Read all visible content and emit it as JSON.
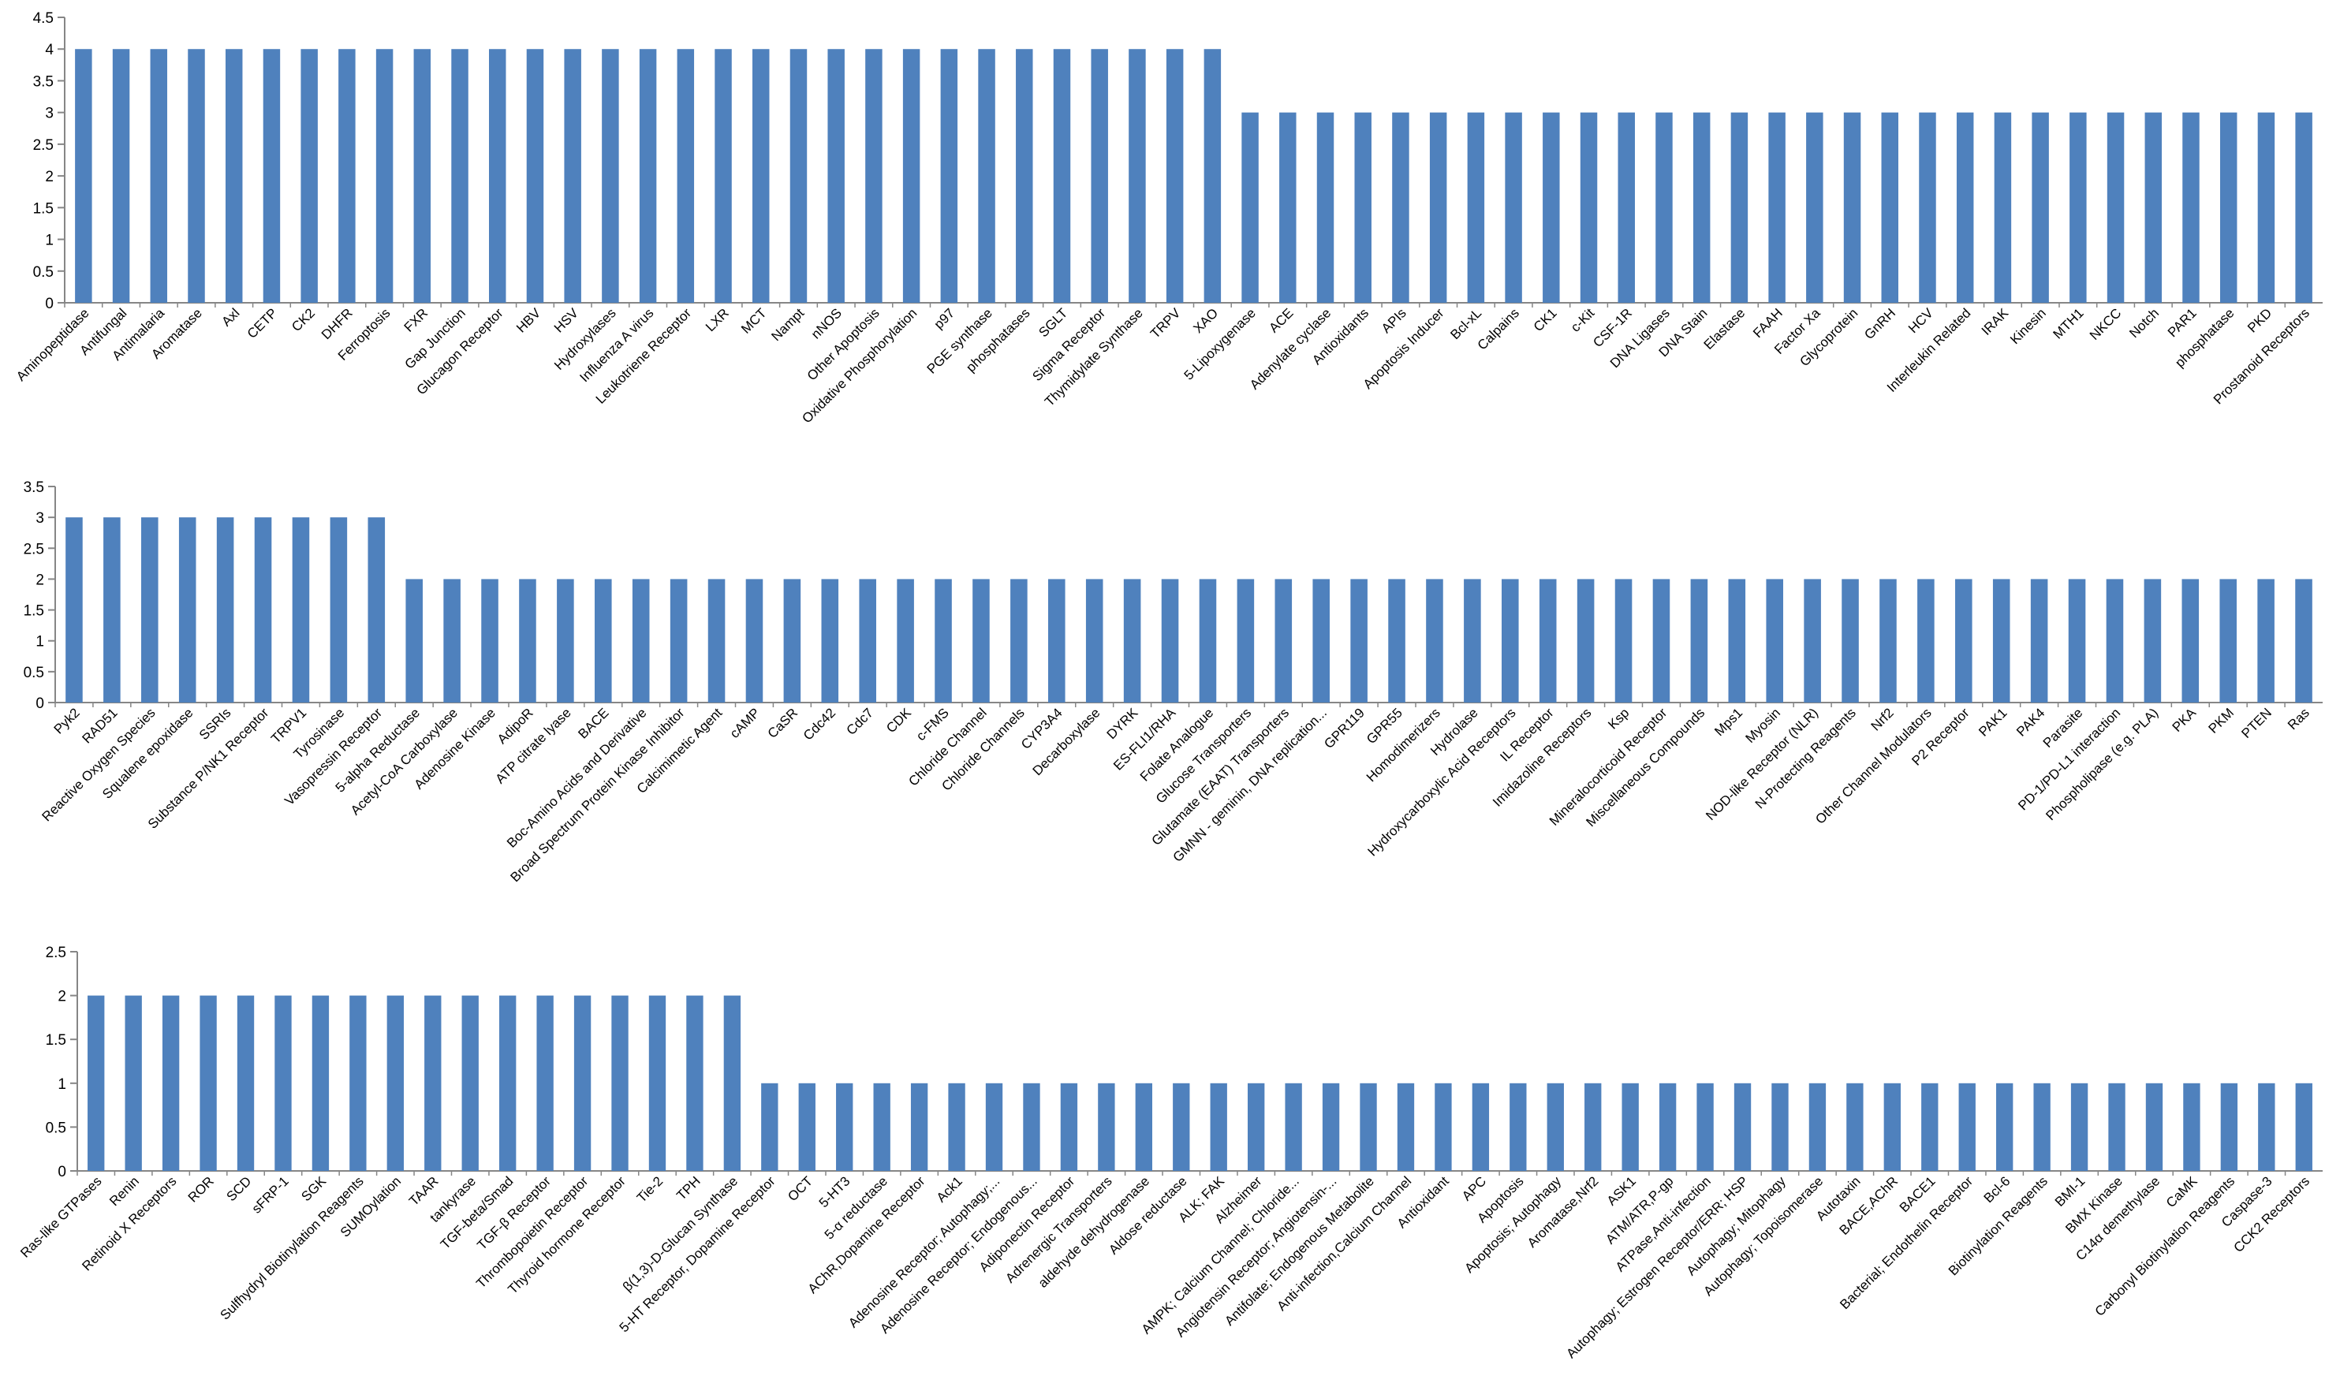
{
  "style": {
    "bar_color": "#4F81BD",
    "axis_color": "#868686",
    "text_color": "#000000"
  },
  "chart_data": [
    {
      "type": "bar",
      "title": "",
      "xlabel": "",
      "ylabel": "",
      "ylim": [
        0,
        4.5
      ],
      "yticks": [
        "0",
        "0.5",
        "1",
        "1.5",
        "2",
        "2.5",
        "3",
        "3.5",
        "4",
        "4.5"
      ],
      "grid": false,
      "legend": "none",
      "categories": [
        "Aminopeptidase",
        "Antifungal",
        "Antimalaria",
        "Aromatase",
        "Axl",
        "CETP",
        "CK2",
        "DHFR",
        "Ferroptosis",
        "FXR",
        "Gap Junction",
        "Glucagon Receptor",
        "HBV",
        "HSV",
        "Hydroxylases",
        "Influenza A virus",
        "Leukotriene Receptor",
        "LXR",
        "MCT",
        "Nampt",
        "nNOS",
        "Other Apoptosis",
        "Oxidative Phosphorylation",
        "p97",
        "PGE synthase",
        "phosphatases",
        "SGLT",
        "Sigma Receptor",
        "Thymidylate Synthase",
        "TRPV",
        "XAO",
        "5-Lipoxygenase",
        "ACE",
        "Adenylate cyclase",
        "Antioxidants",
        "APIs",
        "Apoptosis Inducer",
        "Bcl-xL",
        "Calpains",
        "CK1",
        "c-Kit",
        "CSF-1R",
        "DNA Ligases",
        "DNA Stain",
        "Elastase",
        "FAAH",
        "Factor Xa",
        "Glycoprotein",
        "GnRH",
        "HCV",
        "Interleukin Related",
        "IRAK",
        "Kinesin",
        "MTH1",
        "NKCC",
        "Notch",
        "PAR1",
        "phosphatase",
        "PKD",
        "Prostanoid Receptors"
      ],
      "values": [
        4,
        4,
        4,
        4,
        4,
        4,
        4,
        4,
        4,
        4,
        4,
        4,
        4,
        4,
        4,
        4,
        4,
        4,
        4,
        4,
        4,
        4,
        4,
        4,
        4,
        4,
        4,
        4,
        4,
        4,
        4,
        3,
        3,
        3,
        3,
        3,
        3,
        3,
        3,
        3,
        3,
        3,
        3,
        3,
        3,
        3,
        3,
        3,
        3,
        3,
        3,
        3,
        3,
        3,
        3,
        3,
        3,
        3,
        3,
        3
      ]
    },
    {
      "type": "bar",
      "title": "",
      "xlabel": "",
      "ylabel": "",
      "ylim": [
        0,
        3.5
      ],
      "yticks": [
        "0",
        "0.5",
        "1",
        "1.5",
        "2",
        "2.5",
        "3",
        "3.5"
      ],
      "grid": false,
      "legend": "none",
      "categories": [
        "Pyk2",
        "RAD51",
        "Reactive Oxygen Species",
        "Squalene epoxidase",
        "SSRIs",
        "Substance P/NK1 Receptor",
        "TRPV1",
        "Tyrosinase",
        "Vasopressin Receptor",
        "5-alpha Reductase",
        "Acetyl-CoA Carboxylase",
        "Adenosine Kinase",
        "AdipoR",
        "ATP citrate lyase",
        "BACE",
        "Boc-Amino Acids and Derivative",
        "Broad Spectrum Protein Kinase Inhibitor",
        "Calcimimetic Agent",
        "cAMP",
        "CaSR",
        "Cdc42",
        "Cdc7",
        "CDK",
        "c-FMS",
        "Chloride Channel",
        "Chloride Channels",
        "CYP3A4",
        "Decarboxylase",
        "DYRK",
        "ES-FLI1/RHA",
        "Folate Analogue",
        "Glucose Transporters",
        "Glutamate (EAAT) Transporters",
        "GMNN - geminin, DNA replication...",
        "GPR119",
        "GPR55",
        "Homodimerizers",
        "Hydrolase",
        "Hydroxycarboxylic Acid Receptors",
        "IL Receptor",
        "Imidazoline Receptors",
        "Ksp",
        "Mineralocorticoid Receptor",
        "Miscellaneous Compounds",
        "Mps1",
        "Myosin",
        "NOD-like Receptor (NLR)",
        "N-Protecting Reagents",
        "Nrf2",
        "Other Channel Modulators",
        "P2 Receptor",
        "PAK1",
        "PAK4",
        "Parasite",
        "PD-1/PD-L1 interaction",
        "Phospholipase (e.g. PLA)",
        "PKA",
        "PKM",
        "PTEN",
        "Ras"
      ],
      "values": [
        3,
        3,
        3,
        3,
        3,
        3,
        3,
        3,
        3,
        2,
        2,
        2,
        2,
        2,
        2,
        2,
        2,
        2,
        2,
        2,
        2,
        2,
        2,
        2,
        2,
        2,
        2,
        2,
        2,
        2,
        2,
        2,
        2,
        2,
        2,
        2,
        2,
        2,
        2,
        2,
        2,
        2,
        2,
        2,
        2,
        2,
        2,
        2,
        2,
        2,
        2,
        2,
        2,
        2,
        2,
        2,
        2,
        2,
        2,
        2
      ]
    },
    {
      "type": "bar",
      "title": "",
      "xlabel": "",
      "ylabel": "",
      "ylim": [
        0,
        2.5
      ],
      "yticks": [
        "0",
        "0.5",
        "1",
        "1.5",
        "2",
        "2.5"
      ],
      "grid": false,
      "legend": "none",
      "categories": [
        "Ras-like GTPases",
        "Renin",
        "Retinoid X Receptors",
        "ROR",
        "SCD",
        "sFRP-1",
        "SGK",
        "Sulfhydryl Biotinylation Reagents",
        "SUMOylation",
        "TAAR",
        "tankyrase",
        "TGF-beta/Smad",
        "TGF-β Receptor",
        "Thrombopoietin Receptor",
        "Thyroid hormone Receptor",
        "Tie-2",
        "TPH",
        "β(1,3)-D-Glucan Synthase",
        "5-HT Receptor, Dopamine Receptor",
        "OCT",
        "5-HT3",
        "5-α reductase",
        "AChR,Dopamine Receptor",
        "Ack1",
        "Adenosine Receptor; Autophagy;...",
        "Adenosine Receptor; Endogenous...",
        "Adiponectin Receptor",
        "Adrenergic Transporters",
        "aldehyde dehydrogenase",
        "Aldose reductase",
        "ALK; FAK",
        "Alzheimer",
        "AMPK; Calcium Channel; Chloride...",
        "Angiotensin Receptor; Angiotensin-...",
        "Antifolate; Endogenous Metabolite",
        "Anti-infection,Calcium Channel",
        "Antioxidant",
        "APC",
        "Apoptosis",
        "Apoptosis; Autophagy",
        "Aromatase,Nrf2",
        "ASK1",
        "ATM/ATR,P-gp",
        "ATPase,Anti-infection",
        "Autophagy; Estrogen Receptor/ERR; HSP",
        "Autophagy; Mitophagy",
        "Autophagy; Topoisomerase",
        "Autotaxin",
        "BACE,AChR",
        "BACE1",
        "Bacterial; Endothelin Receptor",
        "Bcl-6",
        "Biotinylation Reagents",
        "BMI-1",
        "BMX Kinase",
        "C14α demethylase",
        "CaMK",
        "Carbonyl Biotinylation Reagents",
        "Caspase-3",
        "CCK2 Receptors"
      ],
      "values": [
        2,
        2,
        2,
        2,
        2,
        2,
        2,
        2,
        2,
        2,
        2,
        2,
        2,
        2,
        2,
        2,
        2,
        2,
        1,
        1,
        1,
        1,
        1,
        1,
        1,
        1,
        1,
        1,
        1,
        1,
        1,
        1,
        1,
        1,
        1,
        1,
        1,
        1,
        1,
        1,
        1,
        1,
        1,
        1,
        1,
        1,
        1,
        1,
        1,
        1,
        1,
        1,
        1,
        1,
        1,
        1,
        1,
        1,
        1,
        1
      ]
    }
  ]
}
